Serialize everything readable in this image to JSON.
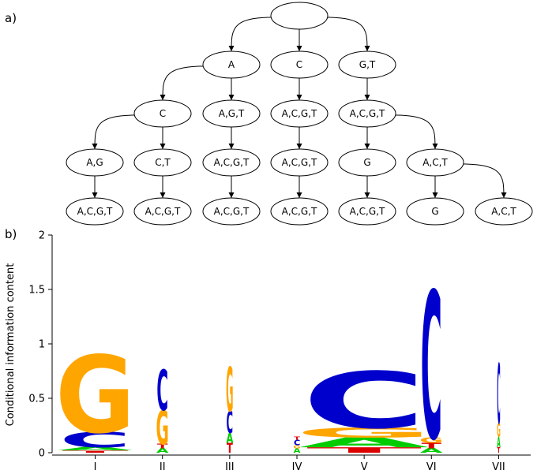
{
  "panel_a_label": "a)",
  "panel_b_label": "b)",
  "tree": {
    "nodes": [
      {
        "id": "root",
        "label": ""
      },
      {
        "id": "n_A",
        "label": "A"
      },
      {
        "id": "n_C",
        "label": "C"
      },
      {
        "id": "n_GT",
        "label": "G,T"
      },
      {
        "id": "n_A_C",
        "label": "C"
      },
      {
        "id": "n_A_AGT",
        "label": "A,G,T"
      },
      {
        "id": "n_C_ACGT",
        "label": "A,C,G,T"
      },
      {
        "id": "n_GT_ACGT",
        "label": "A,C,G,T"
      },
      {
        "id": "n_A_C_AG",
        "label": "A,G"
      },
      {
        "id": "n_A_C_CT",
        "label": "C,T"
      },
      {
        "id": "n_A_AGT_ACGT",
        "label": "A,C,G,T"
      },
      {
        "id": "n_C_ACGT_ACGT",
        "label": "A,C,G,T"
      },
      {
        "id": "n_GT_ACGT_G",
        "label": "G"
      },
      {
        "id": "n_GT_ACGT_ACT",
        "label": "A,C,T"
      },
      {
        "id": "leaf1",
        "label": "A,C,G,T"
      },
      {
        "id": "leaf2",
        "label": "A,C,G,T"
      },
      {
        "id": "leaf3",
        "label": "A,C,G,T"
      },
      {
        "id": "leaf4",
        "label": "A,C,G,T"
      },
      {
        "id": "leaf5",
        "label": "A,C,G,T"
      },
      {
        "id": "leaf6",
        "label": "G"
      },
      {
        "id": "leaf7",
        "label": "A,C,T"
      }
    ],
    "edges": [
      [
        "root",
        "n_A"
      ],
      [
        "root",
        "n_C"
      ],
      [
        "root",
        "n_GT"
      ],
      [
        "n_A",
        "n_A_C"
      ],
      [
        "n_A",
        "n_A_AGT"
      ],
      [
        "n_C",
        "n_C_ACGT"
      ],
      [
        "n_GT",
        "n_GT_ACGT"
      ],
      [
        "n_A_C",
        "n_A_C_AG"
      ],
      [
        "n_A_C",
        "n_A_C_CT"
      ],
      [
        "n_A_AGT",
        "n_A_AGT_ACGT"
      ],
      [
        "n_C_ACGT",
        "n_C_ACGT_ACGT"
      ],
      [
        "n_GT_ACGT",
        "n_GT_ACGT_G"
      ],
      [
        "n_GT_ACGT",
        "n_GT_ACGT_ACT"
      ],
      [
        "n_A_C_AG",
        "leaf1"
      ],
      [
        "n_A_C_CT",
        "leaf2"
      ],
      [
        "n_A_AGT_ACGT",
        "leaf3"
      ],
      [
        "n_C_ACGT_ACGT",
        "leaf4"
      ],
      [
        "n_GT_ACGT_G",
        "leaf5"
      ],
      [
        "n_GT_ACGT_ACT",
        "leaf6"
      ],
      [
        "n_GT_ACGT_ACT",
        "leaf7"
      ]
    ]
  },
  "chart_data": {
    "type": "sequence_logo",
    "ylabel": "Conditional information content",
    "ylim": [
      0,
      2
    ],
    "yticks": [
      "0",
      "0.5",
      "1",
      "1.5",
      "2"
    ],
    "positions": [
      "I",
      "II",
      "III",
      "IV",
      "V",
      "VI",
      "VII"
    ],
    "colors": {
      "A": "#00cc00",
      "C": "#0000cc",
      "G": "#ffa500",
      "T": "#dd0000"
    },
    "stacks": [
      {
        "position": "I",
        "letters": [
          {
            "letter": "T",
            "height": 0.02
          },
          {
            "letter": "A",
            "height": 0.03
          },
          {
            "letter": "C",
            "height": 0.14
          },
          {
            "letter": "G",
            "height": 0.71
          }
        ]
      },
      {
        "position": "II",
        "letters": [
          {
            "letter": "A",
            "height": 0.04
          },
          {
            "letter": "T",
            "height": 0.04
          },
          {
            "letter": "G",
            "height": 0.31
          },
          {
            "letter": "C",
            "height": 0.37
          }
        ]
      },
      {
        "position": "III",
        "letters": [
          {
            "letter": "T",
            "height": 0.09
          },
          {
            "letter": "A",
            "height": 0.09
          },
          {
            "letter": "C",
            "height": 0.2
          },
          {
            "letter": "G",
            "height": 0.41
          }
        ]
      },
      {
        "position": "IV",
        "letters": [
          {
            "letter": "A",
            "height": 0.04
          },
          {
            "letter": "G",
            "height": 0.03
          },
          {
            "letter": "C",
            "height": 0.05
          },
          {
            "letter": "T",
            "height": 0.03
          }
        ]
      },
      {
        "position": "V",
        "letters": [
          {
            "letter": "T",
            "height": 0.05
          },
          {
            "letter": "A",
            "height": 0.09
          },
          {
            "letter": "G",
            "height": 0.09
          },
          {
            "letter": "C",
            "height": 0.52
          }
        ]
      },
      {
        "position": "VI",
        "letters": [
          {
            "letter": "A",
            "height": 0.04
          },
          {
            "letter": "T",
            "height": 0.05
          },
          {
            "letter": "G",
            "height": 0.05
          },
          {
            "letter": "C",
            "height": 1.35
          }
        ]
      },
      {
        "position": "VII",
        "letters": [
          {
            "letter": "T",
            "height": 0.05
          },
          {
            "letter": "A",
            "height": 0.1
          },
          {
            "letter": "G",
            "height": 0.12
          },
          {
            "letter": "C",
            "height": 0.55
          }
        ]
      }
    ]
  }
}
